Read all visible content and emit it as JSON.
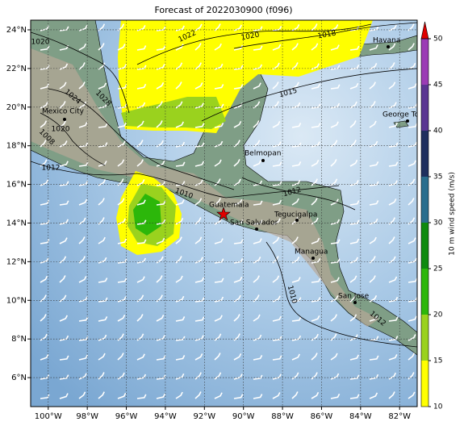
{
  "title": "Forecast of 2022030900 (f096)",
  "map": {
    "xlim": [
      -100.9,
      -81.1
    ],
    "ylim": [
      4.5,
      24.5
    ],
    "xticks": [
      {
        "value": -100,
        "label": "100°W"
      },
      {
        "value": -98,
        "label": "98°W"
      },
      {
        "value": -96,
        "label": "96°W"
      },
      {
        "value": -94,
        "label": "94°W"
      },
      {
        "value": -92,
        "label": "92°W"
      },
      {
        "value": -90,
        "label": "90°W"
      },
      {
        "value": -88,
        "label": "88°W"
      },
      {
        "value": -86,
        "label": "86°W"
      },
      {
        "value": -84,
        "label": "84°W"
      },
      {
        "value": -82,
        "label": "82°W"
      }
    ],
    "yticks": [
      {
        "value": 6,
        "label": "6°N"
      },
      {
        "value": 8,
        "label": "8°N"
      },
      {
        "value": 10,
        "label": "10°N"
      },
      {
        "value": 12,
        "label": "12°N"
      },
      {
        "value": 14,
        "label": "14°N"
      },
      {
        "value": 16,
        "label": "16°N"
      },
      {
        "value": 18,
        "label": "18°N"
      },
      {
        "value": 20,
        "label": "20°N"
      },
      {
        "value": 22,
        "label": "22°N"
      },
      {
        "value": 24,
        "label": "24°N"
      }
    ],
    "cities": [
      "Havana",
      "George Town",
      "Mexico City",
      "Belmopan",
      "Guatemala",
      "Tegucigalpa",
      "San Salvador",
      "Managua",
      "San Jose"
    ],
    "contour_labels": [
      "1020",
      "1022",
      "1020",
      "1018",
      "1015",
      "1028",
      "1024",
      "1020",
      "1008",
      "1012",
      "1010",
      "1012",
      "1010",
      "1012"
    ]
  },
  "colorbar": {
    "label": "10 m wind speed (m/s)",
    "ticks": [
      10,
      15,
      20,
      25,
      30,
      35,
      40,
      45,
      50
    ],
    "colors": [
      "#ffff00",
      "#9ad21e",
      "#2cb70a",
      "#0e8a0e",
      "#2a6e8e",
      "#1f2f5e",
      "#5a3592",
      "#9b3cb5"
    ],
    "extend_color": "#e00000"
  }
}
